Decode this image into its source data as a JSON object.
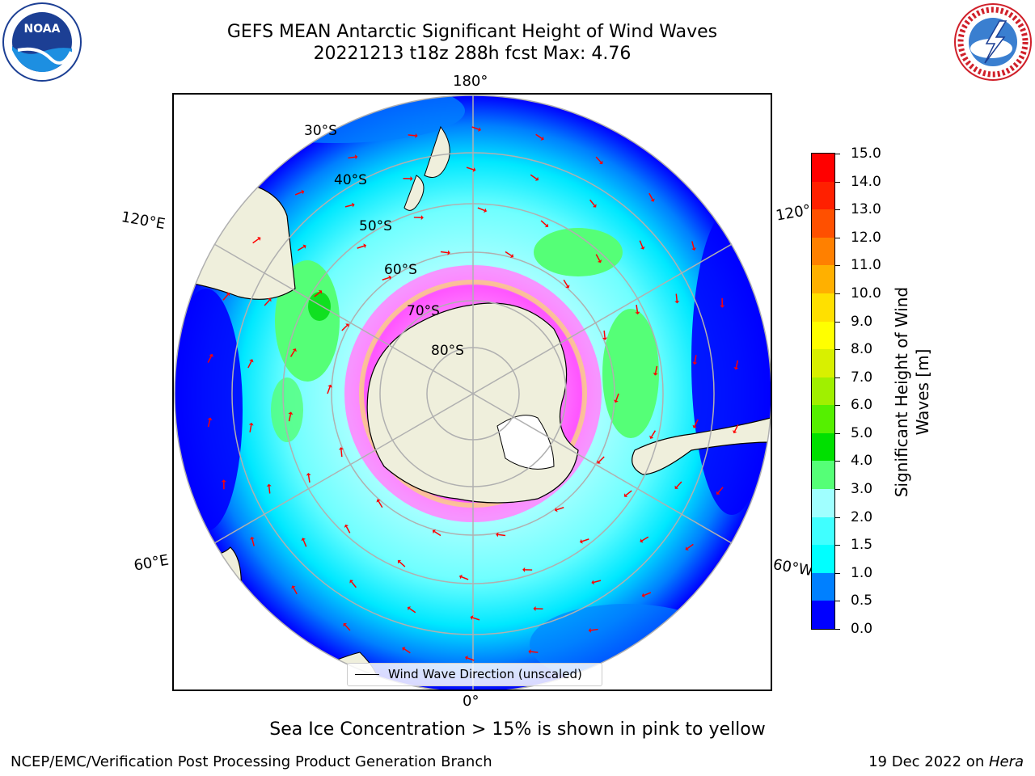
{
  "header": {
    "title_line1": "GEFS MEAN Antarctic Significant Height of Wind Waves",
    "title_line2": "20221213 t18z 288h fcst   Max: 4.76"
  },
  "logos": {
    "left": "NOAA",
    "left_ring_text": "NATIONAL OCEANIC AND ATMOSPHERIC ADMINISTRATION · U.S. DEPARTMENT OF COMMERCE",
    "right_ring_text": "NATIONAL WEATHER SERVICE"
  },
  "map": {
    "projection": "south-polar-stereographic",
    "longitude_labels": {
      "top": "180°",
      "bottom": "0°",
      "left_upper": "120°E",
      "left_lower": "60°E",
      "right_upper": "120°",
      "right_lower": "60°W"
    },
    "latitude_labels": [
      "30°S",
      "40°S",
      "50°S",
      "60°S",
      "70°S",
      "80°S"
    ],
    "legend": "Wind Wave Direction (unscaled)",
    "colors": {
      "land": "#efefdc",
      "ocean_low": "#0000ff",
      "ocean_mid": "#00ffff",
      "sea_ice": "#ff44ff",
      "arrows": "#ff0000",
      "graticule": "#b0b0b0"
    }
  },
  "colorbar": {
    "title": "Significant Height of Wind Waves [m]",
    "ticks": [
      "0.0",
      "0.5",
      "1.0",
      "1.5",
      "2.0",
      "3.0",
      "4.0",
      "5.0",
      "6.0",
      "7.0",
      "8.0",
      "9.0",
      "10.0",
      "11.0",
      "12.0",
      "13.0",
      "14.0",
      "15.0"
    ],
    "colors": [
      "#0000ff",
      "#0080ff",
      "#00ffff",
      "#40ffff",
      "#a0ffff",
      "#55ff77",
      "#00e000",
      "#55f000",
      "#a0f000",
      "#d8f000",
      "#ffff00",
      "#ffe000",
      "#ffb000",
      "#ff8000",
      "#ff5000",
      "#ff2000",
      "#ff0000"
    ]
  },
  "caption": "Sea Ice Concentration > 15% is shown in pink to yellow",
  "footer": {
    "left": "NCEP/EMC/Verification Post Processing Product Generation Branch",
    "right_prefix": "19 Dec 2022 on ",
    "right_host": "Hera"
  }
}
